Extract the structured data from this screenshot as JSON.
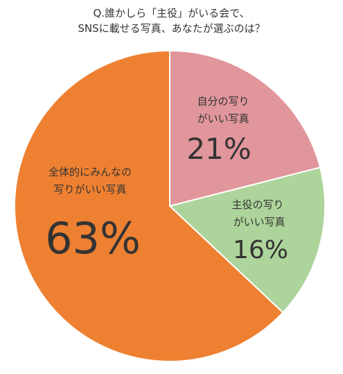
{
  "title_lines": [
    "Q.誰かしら「主役」がいる会で、",
    "SNSに載せる写真、あなたが選ぶのは？"
  ],
  "chart_data": {
    "type": "pie",
    "title": "Q.誰かしら「主役」がいる会で、SNSに載せる写真、あなたが選ぶのは？",
    "slices": [
      {
        "label_lines": [
          "自分の写り",
          "がいい写真"
        ],
        "value": 21,
        "value_text": "21%",
        "color": "#e0969b"
      },
      {
        "label_lines": [
          "主役の写り",
          "がいい写真"
        ],
        "value": 16,
        "value_text": "16%",
        "color": "#add49a"
      },
      {
        "label_lines": [
          "全体的にみんなの",
          "写りがいい写真"
        ],
        "value": 63,
        "value_text": "63%",
        "color": "#ee8031"
      }
    ],
    "start": "12 o'clock",
    "direction": "clockwise",
    "legend": "none"
  }
}
